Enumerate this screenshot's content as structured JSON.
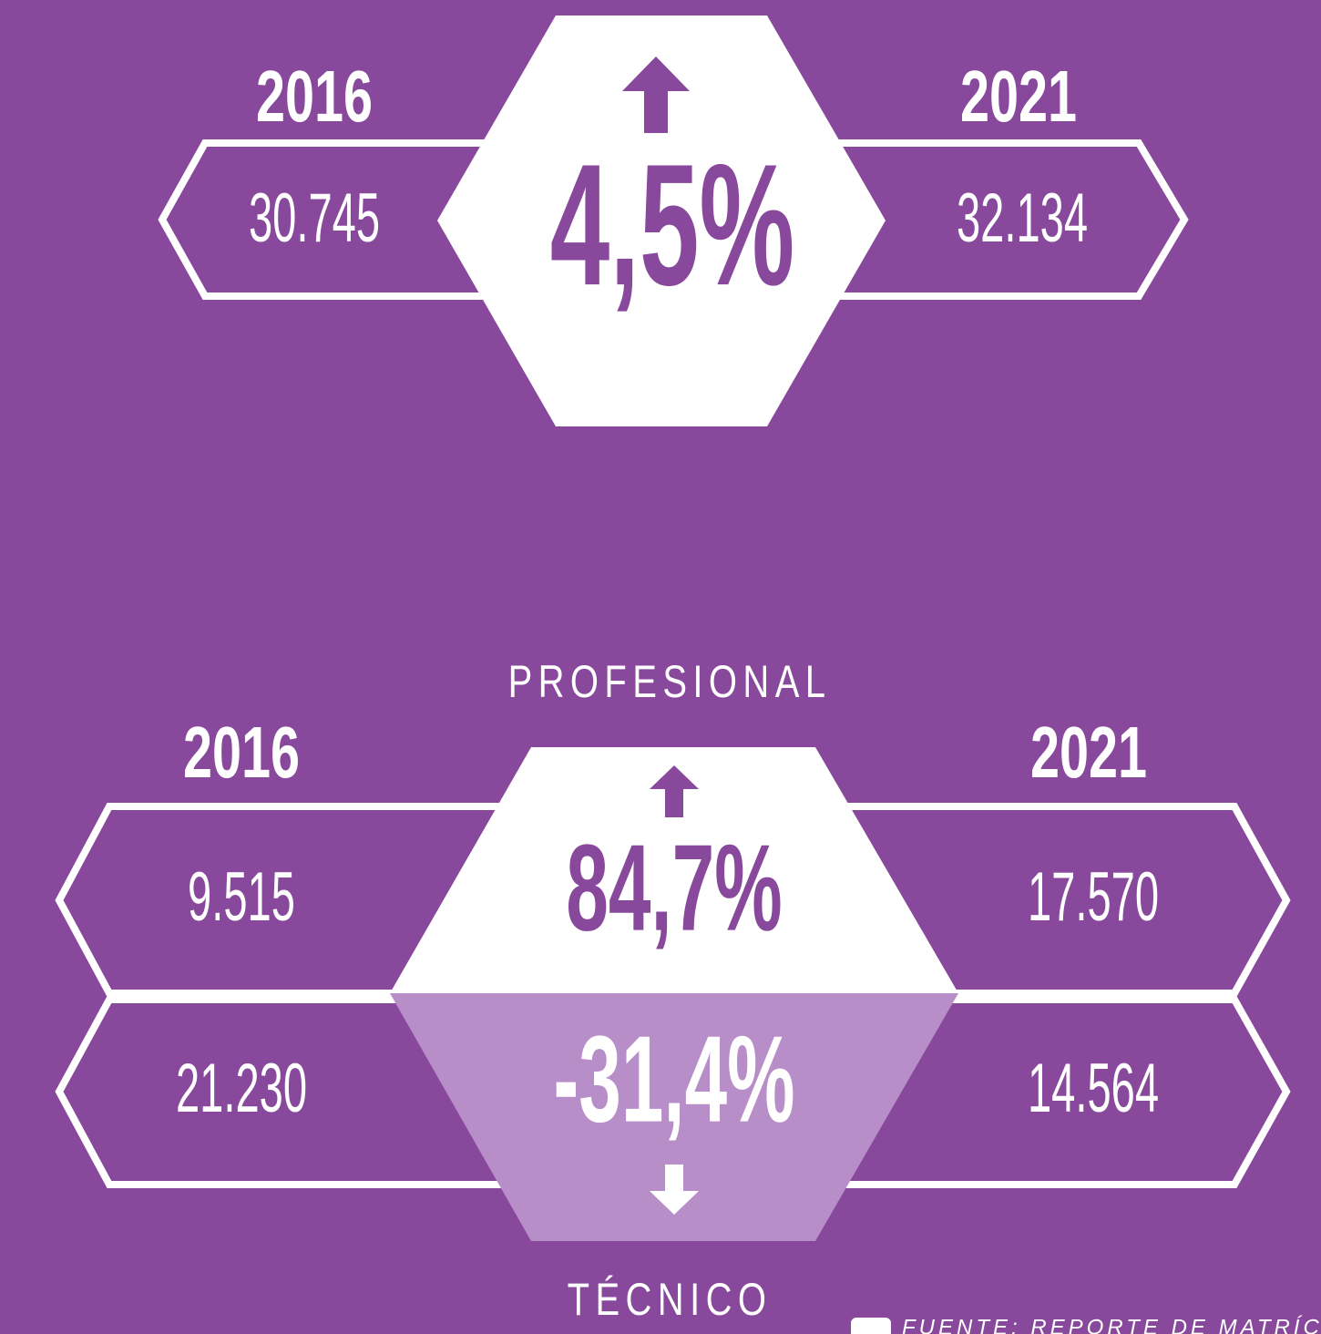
{
  "top": {
    "year_left": "2016",
    "year_right": "2021",
    "value_left": "30.745",
    "value_right": "32.134",
    "change": "4,5%"
  },
  "bottom": {
    "label_top": "PROFESIONAL",
    "year_left": "2016",
    "year_right": "2021",
    "profesional": {
      "value_left": "9.515",
      "value_right": "17.570",
      "change": "84,7%"
    },
    "tecnico": {
      "value_left": "21.230",
      "value_right": "14.564",
      "change": "-31,4%"
    },
    "label_bottom": "TÉCNICO"
  },
  "footer": {
    "source": "FUENTE: REPORTE DE MATRÍCULA N"
  }
}
